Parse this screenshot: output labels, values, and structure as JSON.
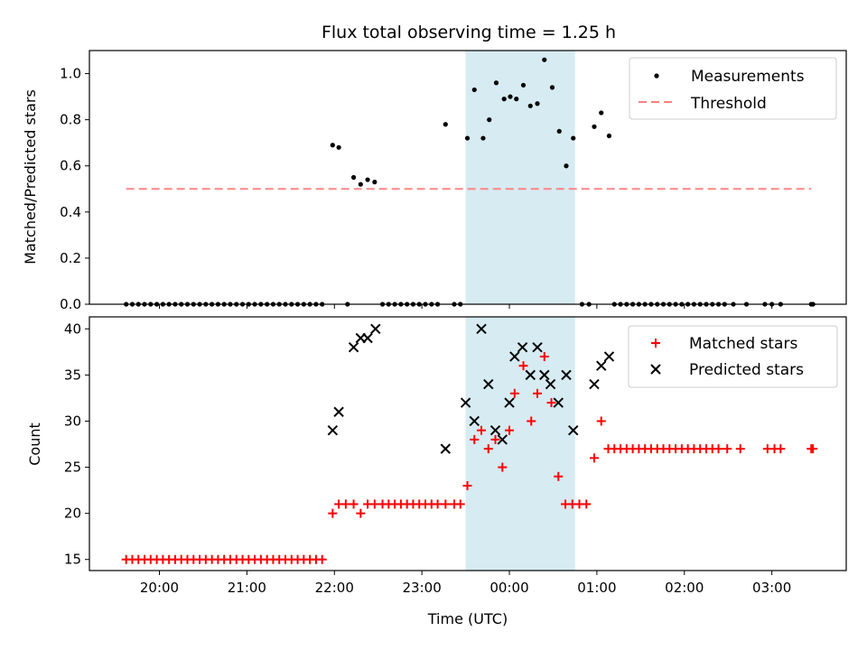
{
  "title": "Flux total observing time = 1.25 h",
  "xlabel": "Time (UTC)",
  "x_ticks": [
    {
      "t": 20.0,
      "label": "20:00"
    },
    {
      "t": 21.0,
      "label": "21:00"
    },
    {
      "t": 22.0,
      "label": "22:00"
    },
    {
      "t": 23.0,
      "label": "23:00"
    },
    {
      "t": 24.0,
      "label": "00:00"
    },
    {
      "t": 25.0,
      "label": "01:00"
    },
    {
      "t": 26.0,
      "label": "02:00"
    },
    {
      "t": 27.0,
      "label": "03:00"
    }
  ],
  "xlim": [
    19.2,
    27.85
  ],
  "shaded_span": [
    23.5,
    24.75
  ],
  "colors": {
    "shade": "#add8e6",
    "threshold": "#ff7f7f",
    "matched": "#ff0000",
    "predicted": "#000000",
    "measurement": "#000000"
  },
  "chart_data": [
    {
      "type": "scatter",
      "title": "Flux total observing time = 1.25 h",
      "ylabel": "Matched/Predicted stars",
      "ylim": [
        0,
        1.1
      ],
      "y_ticks": [
        "0.0",
        "0.2",
        "0.4",
        "0.6",
        "0.8",
        "1.0"
      ],
      "legend_position": "top-right",
      "legend": [
        "Measurements",
        "Threshold"
      ],
      "threshold": {
        "name": "Threshold",
        "y": 0.5,
        "x_range": [
          19.62,
          27.45
        ]
      },
      "measurements": {
        "name": "Measurements",
        "points": [
          [
            19.62,
            0
          ],
          [
            19.69,
            0
          ],
          [
            19.76,
            0
          ],
          [
            19.83,
            0
          ],
          [
            19.9,
            0
          ],
          [
            19.97,
            0
          ],
          [
            20.04,
            0
          ],
          [
            20.11,
            0
          ],
          [
            20.18,
            0
          ],
          [
            20.25,
            0
          ],
          [
            20.32,
            0
          ],
          [
            20.39,
            0
          ],
          [
            20.46,
            0
          ],
          [
            20.53,
            0
          ],
          [
            20.6,
            0
          ],
          [
            20.67,
            0
          ],
          [
            20.74,
            0
          ],
          [
            20.81,
            0
          ],
          [
            20.88,
            0
          ],
          [
            20.95,
            0
          ],
          [
            21.02,
            0
          ],
          [
            21.09,
            0
          ],
          [
            21.16,
            0
          ],
          [
            21.23,
            0
          ],
          [
            21.3,
            0
          ],
          [
            21.37,
            0
          ],
          [
            21.44,
            0
          ],
          [
            21.51,
            0
          ],
          [
            21.58,
            0
          ],
          [
            21.65,
            0
          ],
          [
            21.72,
            0
          ],
          [
            21.79,
            0
          ],
          [
            21.86,
            0
          ],
          [
            21.98,
            0.69
          ],
          [
            22.05,
            0.68
          ],
          [
            22.15,
            0
          ],
          [
            22.22,
            0.55
          ],
          [
            22.3,
            0.52
          ],
          [
            22.38,
            0.54
          ],
          [
            22.46,
            0.53
          ],
          [
            22.55,
            0
          ],
          [
            22.62,
            0
          ],
          [
            22.69,
            0
          ],
          [
            22.76,
            0
          ],
          [
            22.83,
            0
          ],
          [
            22.9,
            0
          ],
          [
            22.97,
            0
          ],
          [
            23.04,
            0
          ],
          [
            23.11,
            0
          ],
          [
            23.18,
            0
          ],
          [
            23.27,
            0.78
          ],
          [
            23.37,
            0
          ],
          [
            23.44,
            0
          ],
          [
            23.52,
            0.72
          ],
          [
            23.6,
            0.93
          ],
          [
            23.7,
            0.72
          ],
          [
            23.77,
            0.8
          ],
          [
            23.85,
            0.96
          ],
          [
            23.94,
            0.89
          ],
          [
            24.01,
            0.9
          ],
          [
            24.08,
            0.89
          ],
          [
            24.16,
            0.95
          ],
          [
            24.24,
            0.86
          ],
          [
            24.32,
            0.87
          ],
          [
            24.4,
            1.06
          ],
          [
            24.49,
            0.94
          ],
          [
            24.57,
            0.75
          ],
          [
            24.65,
            0.6
          ],
          [
            24.73,
            0.72
          ],
          [
            24.83,
            0
          ],
          [
            24.91,
            0
          ],
          [
            24.97,
            0.77
          ],
          [
            25.05,
            0.83
          ],
          [
            25.14,
            0.73
          ],
          [
            25.2,
            0
          ],
          [
            25.27,
            0
          ],
          [
            25.34,
            0
          ],
          [
            25.41,
            0
          ],
          [
            25.48,
            0
          ],
          [
            25.55,
            0
          ],
          [
            25.62,
            0
          ],
          [
            25.69,
            0
          ],
          [
            25.76,
            0
          ],
          [
            25.83,
            0
          ],
          [
            25.9,
            0
          ],
          [
            25.97,
            0
          ],
          [
            26.04,
            0
          ],
          [
            26.11,
            0
          ],
          [
            26.18,
            0
          ],
          [
            26.25,
            0
          ],
          [
            26.32,
            0
          ],
          [
            26.39,
            0
          ],
          [
            26.46,
            0
          ],
          [
            26.56,
            0
          ],
          [
            26.71,
            0
          ],
          [
            26.92,
            0
          ],
          [
            27.0,
            0
          ],
          [
            27.1,
            0
          ],
          [
            27.45,
            0
          ],
          [
            27.47,
            0
          ]
        ]
      }
    },
    {
      "type": "scatter",
      "ylabel": "Count",
      "ylim": [
        13.8,
        41.3
      ],
      "y_ticks": [
        "15",
        "20",
        "25",
        "30",
        "35",
        "40"
      ],
      "legend_position": "top-right",
      "legend": [
        "Matched stars",
        "Predicted stars"
      ],
      "series": [
        {
          "name": "Matched stars",
          "marker": "plus",
          "points": [
            [
              19.62,
              15
            ],
            [
              19.69,
              15
            ],
            [
              19.76,
              15
            ],
            [
              19.83,
              15
            ],
            [
              19.9,
              15
            ],
            [
              19.97,
              15
            ],
            [
              20.04,
              15
            ],
            [
              20.11,
              15
            ],
            [
              20.18,
              15
            ],
            [
              20.25,
              15
            ],
            [
              20.32,
              15
            ],
            [
              20.39,
              15
            ],
            [
              20.46,
              15
            ],
            [
              20.53,
              15
            ],
            [
              20.6,
              15
            ],
            [
              20.67,
              15
            ],
            [
              20.74,
              15
            ],
            [
              20.81,
              15
            ],
            [
              20.88,
              15
            ],
            [
              20.95,
              15
            ],
            [
              21.02,
              15
            ],
            [
              21.09,
              15
            ],
            [
              21.16,
              15
            ],
            [
              21.23,
              15
            ],
            [
              21.3,
              15
            ],
            [
              21.37,
              15
            ],
            [
              21.44,
              15
            ],
            [
              21.51,
              15
            ],
            [
              21.58,
              15
            ],
            [
              21.65,
              15
            ],
            [
              21.72,
              15
            ],
            [
              21.79,
              15
            ],
            [
              21.86,
              15
            ],
            [
              21.98,
              20
            ],
            [
              22.05,
              21
            ],
            [
              22.13,
              21
            ],
            [
              22.22,
              21
            ],
            [
              22.3,
              20
            ],
            [
              22.38,
              21
            ],
            [
              22.46,
              21
            ],
            [
              22.55,
              21
            ],
            [
              22.62,
              21
            ],
            [
              22.69,
              21
            ],
            [
              22.76,
              21
            ],
            [
              22.83,
              21
            ],
            [
              22.9,
              21
            ],
            [
              22.97,
              21
            ],
            [
              23.04,
              21
            ],
            [
              23.11,
              21
            ],
            [
              23.18,
              21
            ],
            [
              23.27,
              21
            ],
            [
              23.37,
              21
            ],
            [
              23.44,
              21
            ],
            [
              23.52,
              23
            ],
            [
              23.6,
              28
            ],
            [
              23.68,
              29
            ],
            [
              23.76,
              27
            ],
            [
              23.84,
              28
            ],
            [
              23.92,
              25
            ],
            [
              24.0,
              29
            ],
            [
              24.06,
              33
            ],
            [
              24.16,
              36
            ],
            [
              24.25,
              30
            ],
            [
              24.32,
              33
            ],
            [
              24.4,
              37
            ],
            [
              24.48,
              32
            ],
            [
              24.56,
              24
            ],
            [
              24.64,
              21
            ],
            [
              24.72,
              21
            ],
            [
              24.8,
              21
            ],
            [
              24.88,
              21
            ],
            [
              24.97,
              26
            ],
            [
              25.05,
              30
            ],
            [
              25.13,
              27
            ],
            [
              25.2,
              27
            ],
            [
              25.27,
              27
            ],
            [
              25.34,
              27
            ],
            [
              25.41,
              27
            ],
            [
              25.48,
              27
            ],
            [
              25.55,
              27
            ],
            [
              25.62,
              27
            ],
            [
              25.69,
              27
            ],
            [
              25.76,
              27
            ],
            [
              25.83,
              27
            ],
            [
              25.9,
              27
            ],
            [
              25.97,
              27
            ],
            [
              26.04,
              27
            ],
            [
              26.11,
              27
            ],
            [
              26.18,
              27
            ],
            [
              26.25,
              27
            ],
            [
              26.32,
              27
            ],
            [
              26.39,
              27
            ],
            [
              26.49,
              27
            ],
            [
              26.64,
              27
            ],
            [
              26.95,
              27
            ],
            [
              27.03,
              27
            ],
            [
              27.1,
              27
            ],
            [
              27.45,
              27
            ],
            [
              27.47,
              27
            ]
          ]
        },
        {
          "name": "Predicted stars",
          "marker": "x",
          "points": [
            [
              21.98,
              29
            ],
            [
              22.05,
              31
            ],
            [
              22.22,
              38
            ],
            [
              22.3,
              39
            ],
            [
              22.38,
              39
            ],
            [
              22.47,
              40
            ],
            [
              23.27,
              27
            ],
            [
              23.5,
              32
            ],
            [
              23.6,
              30
            ],
            [
              23.68,
              40
            ],
            [
              23.76,
              34
            ],
            [
              23.84,
              29
            ],
            [
              23.92,
              28
            ],
            [
              24.0,
              32
            ],
            [
              24.06,
              37
            ],
            [
              24.15,
              38
            ],
            [
              24.24,
              35
            ],
            [
              24.32,
              38
            ],
            [
              24.4,
              35
            ],
            [
              24.47,
              34
            ],
            [
              24.56,
              32
            ],
            [
              24.65,
              35
            ],
            [
              24.73,
              29
            ],
            [
              24.97,
              34
            ],
            [
              25.05,
              36
            ],
            [
              25.14,
              37
            ]
          ]
        }
      ]
    }
  ]
}
